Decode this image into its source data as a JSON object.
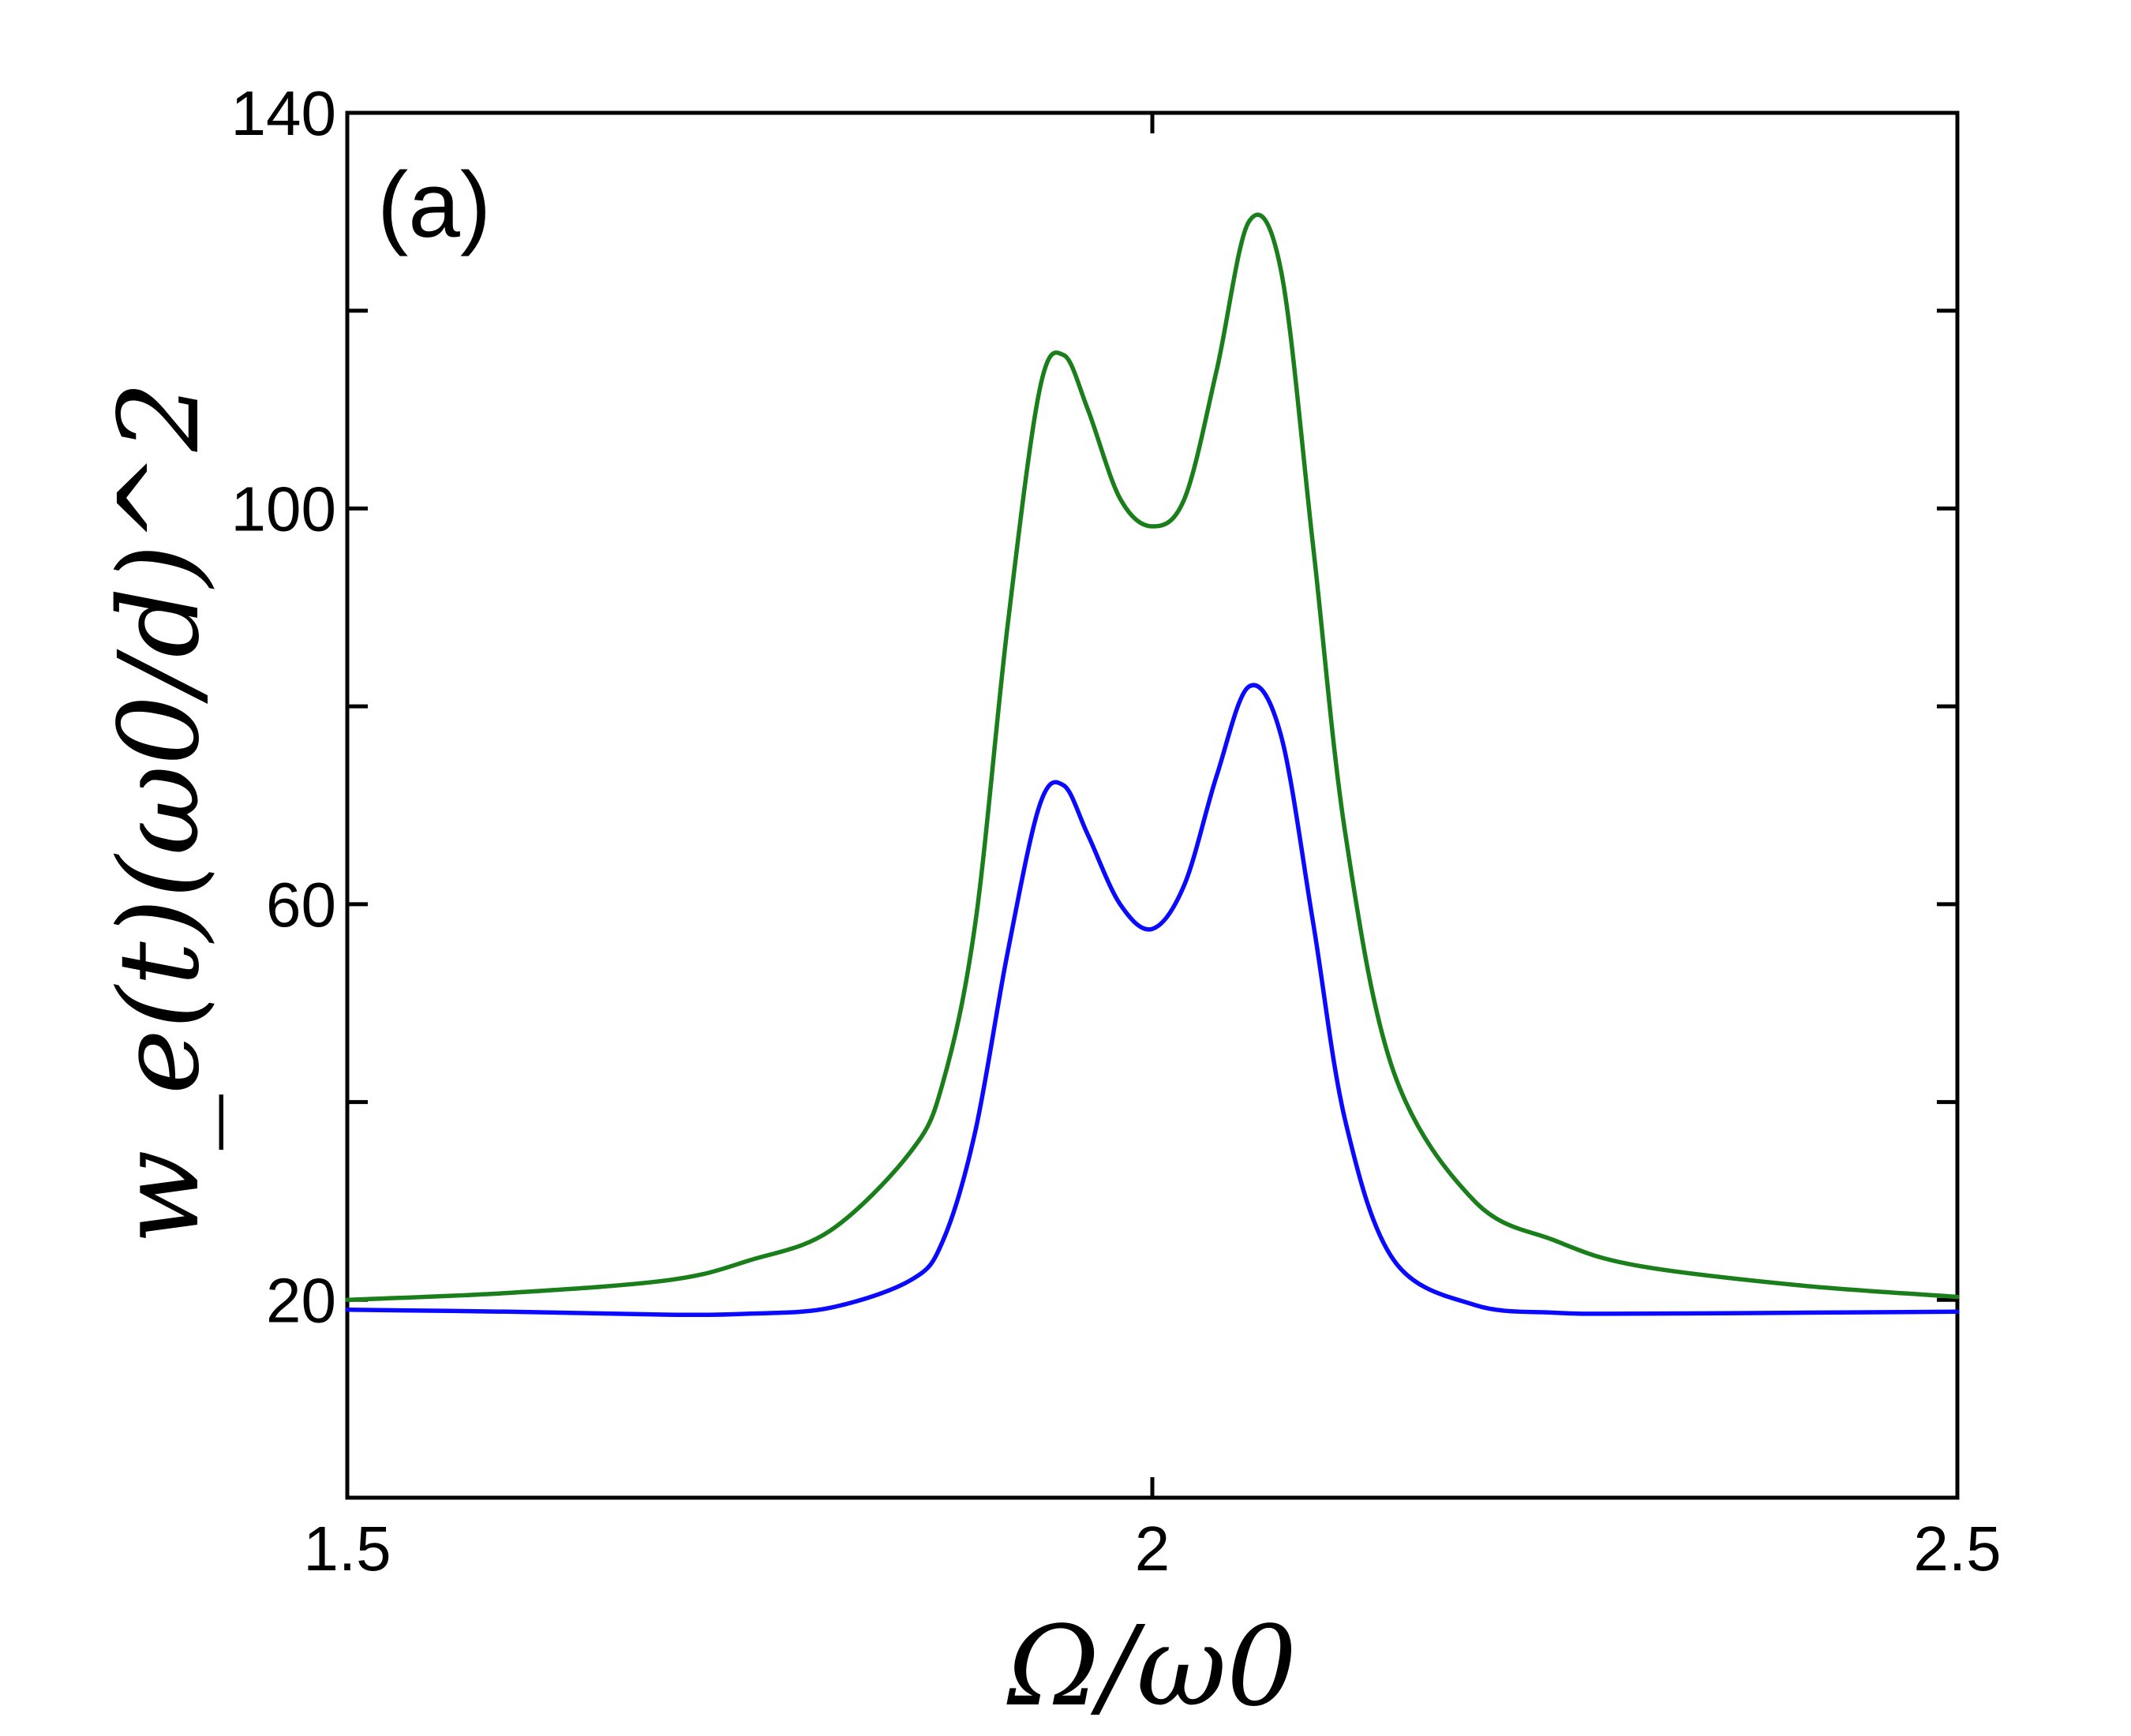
{
  "chart_data": {
    "type": "line",
    "panel_label": "(a)",
    "xlabel": "Ω/ω0",
    "ylabel": "w_e(t)(ω0/d)^2",
    "xlim": [
      1.5,
      2.5
    ],
    "ylim": [
      0,
      140
    ],
    "x_ticks": [
      {
        "value": 1.5,
        "label": "1.5"
      },
      {
        "value": 2,
        "label": "2"
      },
      {
        "value": 2.5,
        "label": "2.5"
      }
    ],
    "y_ticks": [
      {
        "value": 20,
        "label": "20"
      },
      {
        "value": 40,
        "label": ""
      },
      {
        "value": 60,
        "label": "60"
      },
      {
        "value": 80,
        "label": ""
      },
      {
        "value": 100,
        "label": "100"
      },
      {
        "value": 120,
        "label": ""
      },
      {
        "value": 140,
        "label": "140"
      }
    ],
    "grid": false,
    "series": [
      {
        "color": "#1a7f1a",
        "x": [
          1.5,
          1.6,
          1.7,
          1.75,
          1.8,
          1.85,
          1.87,
          1.89,
          1.91,
          1.93,
          1.945,
          1.96,
          1.98,
          2.0,
          2.02,
          2.04,
          2.06,
          2.08,
          2.1,
          2.12,
          2.15,
          2.2,
          2.25,
          2.3,
          2.4,
          2.5
        ],
        "y": [
          20,
          20.7,
          22,
          24,
          27,
          35,
          42,
          58,
          88,
          112,
          115.5,
          110,
          101,
          98.2,
          101,
          114,
          129,
          124,
          96,
          67,
          43,
          30,
          26,
          23.5,
          21.5,
          20.3
        ]
      },
      {
        "color": "#0a0aff",
        "x": [
          1.5,
          1.6,
          1.7,
          1.75,
          1.8,
          1.85,
          1.87,
          1.89,
          1.91,
          1.93,
          1.945,
          1.96,
          1.98,
          2.0,
          2.02,
          2.04,
          2.06,
          2.08,
          2.1,
          2.12,
          2.15,
          2.2,
          2.25,
          2.3,
          2.4,
          2.5
        ],
        "y": [
          19,
          18.8,
          18.5,
          18.6,
          19.2,
          22,
          26,
          37,
          55,
          70,
          72,
          67,
          60,
          57.5,
          62,
          73,
          82,
          77,
          58,
          38,
          24,
          19.5,
          18.7,
          18.6,
          18.7,
          18.8
        ]
      }
    ]
  }
}
